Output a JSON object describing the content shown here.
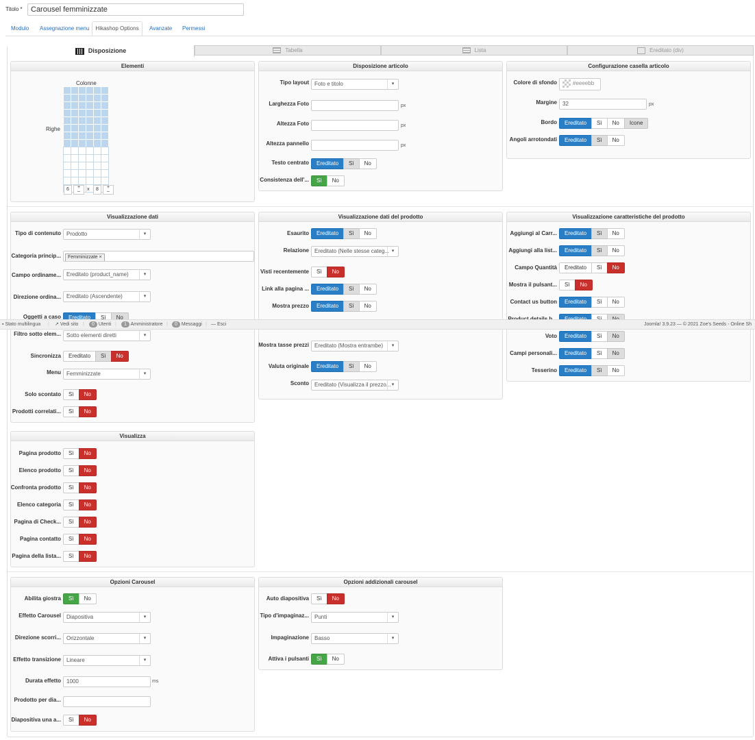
{
  "title_label": "Titolo *",
  "title_value": "Carousel femminizzate",
  "tabs": [
    "Modulo",
    "Assegnazione menu",
    "Hikashop Options",
    "Avanzate",
    "Permessi"
  ],
  "layout_tabs": [
    "Disposizione",
    "Tabella",
    "Lista",
    "Ereditato (div)"
  ],
  "elementi": {
    "title": "Elementi",
    "colonne": "Colonne",
    "righe": "Righe",
    "cols_value": "6",
    "rows_value": "8",
    "x": "x",
    "plus": "+",
    "minus": "–"
  },
  "disp_articolo": {
    "title": "Disposizione articolo",
    "tipo_layout": "Tipo layout",
    "tipo_layout_value": "Foto e titolo",
    "larghezza_foto": "Larghezza Foto",
    "altezza_foto": "Altezza Foto",
    "altezza_pannello": "Altezza pannello",
    "px": "px",
    "testo_centrato": "Testo centrato",
    "consistenza": "Consistenza dell'..."
  },
  "config_casella": {
    "title": "Configurazione casella articolo",
    "colore": "Colore di sfondo",
    "colore_value": "#eeeebb",
    "margine": "Margine",
    "margine_value": "32",
    "px": "px",
    "bordo": "Bordo",
    "angoli": "Angoli arrotondati"
  },
  "buttons": {
    "ereditato": "Ereditato",
    "si": "Sì",
    "no": "No",
    "icone": "Icone"
  },
  "vis_dati": {
    "title": "Visualizzazione dati",
    "tipo_contenuto": "Tipo di contenuto",
    "tipo_contenuto_value": "Prodotto",
    "categoria": "Categoria princip...",
    "categoria_tag": "Femminizzate",
    "campo_ordinamento": "Campo ordiname...",
    "campo_ordinamento_value": "Ereditato (product_name)",
    "direzione_ordina": "Direzione ordina...",
    "direzione_ordina_value": "Ereditato (Ascendente)",
    "oggetti_caso": "Oggetti a caso",
    "filtro": "Filtro sotto elem...",
    "filtro_value": "Sotto elementi diretti",
    "sincronizza": "Sincronizza",
    "menu": "Menu",
    "menu_value": "Femminizzate",
    "solo_scontato": "Solo scontato",
    "prodotti_correlati": "Prodotti correlati..."
  },
  "vis_dati_prodotto": {
    "title": "Visualizzazione dati del prodotto",
    "esaurito": "Esaurito",
    "relazione": "Relazione",
    "relazione_value": "Ereditato (Nelle stesse categ...",
    "visti": "Visti recentemente",
    "link": "Link alla pagina ...",
    "mostra_prezzo": "Mostra prezzo",
    "mostra_tasse": "Mostra tasse prezzi",
    "mostra_tasse_value": "Ereditato (Mostra entrambe)",
    "valuta": "Valuta originale",
    "sconto": "Sconto",
    "sconto_value": "Ereditato (Visualizza il prezzo..."
  },
  "vis_caratteristiche": {
    "title": "Visualizzazione caratteristiche del prodotto",
    "aggiungi_carrello": "Aggiungi al Carr...",
    "aggiungi_lista": "Aggiungi alla list...",
    "campo_quantita": "Campo Quantità",
    "mostra_pulsante": "Mostra il pulsant...",
    "contact_us": "Contact us button",
    "product_details": "Product details b...",
    "voto": "Voto",
    "campi_personali": "Campi personali...",
    "tesserino": "Tesserino"
  },
  "statusbar": {
    "stato": "Stato multilingua",
    "vedi_sito": "Vedi sito",
    "utenti_count": "0",
    "utenti": "Utenti",
    "admin_count": "1",
    "admin": "Amministratore",
    "messaggi_count": "0",
    "messaggi": "Messaggi",
    "esci": "Esci",
    "right": "Joomla! 3.9.23 — © 2021 Zoe's Seeds - Online Sh"
  },
  "visualizza": {
    "title": "Visualizza",
    "items": [
      "Pagina prodotto",
      "Elenco prodotto",
      "Confronta prodotto",
      "Elenco categoria",
      "Pagina di Check...",
      "Pagina contatto",
      "Pagina della lista..."
    ]
  },
  "opzioni_carousel": {
    "title": "Opzioni Carousel",
    "abilita": "Abilita giostra",
    "effetto": "Effetto Carousel",
    "effetto_value": "Diapositiva",
    "direzione": "Direzione scorri...",
    "direzione_value": "Orizzontale",
    "transizione": "Effetto transizione",
    "transizione_value": "Lineare",
    "durata": "Durata effetto",
    "durata_value": "1000",
    "ms": "ms",
    "prodotto_per": "Prodotto per dia...",
    "diapositiva": "Diapositiva una a..."
  },
  "opzioni_add": {
    "title": "Opzioni addizionali carousel",
    "auto": "Auto diapositiva",
    "tipo_impag": "Tipo d'impaginaz...",
    "tipo_impag_value": "Punti",
    "impaginazione": "Impaginazione",
    "impaginazione_value": "Basso",
    "attiva": "Attiva i pulsanti"
  },
  "colors": {
    "blue": "#2a7ec6",
    "red": "#c9302c",
    "green": "#46a546",
    "link": "#2a6ebb"
  }
}
